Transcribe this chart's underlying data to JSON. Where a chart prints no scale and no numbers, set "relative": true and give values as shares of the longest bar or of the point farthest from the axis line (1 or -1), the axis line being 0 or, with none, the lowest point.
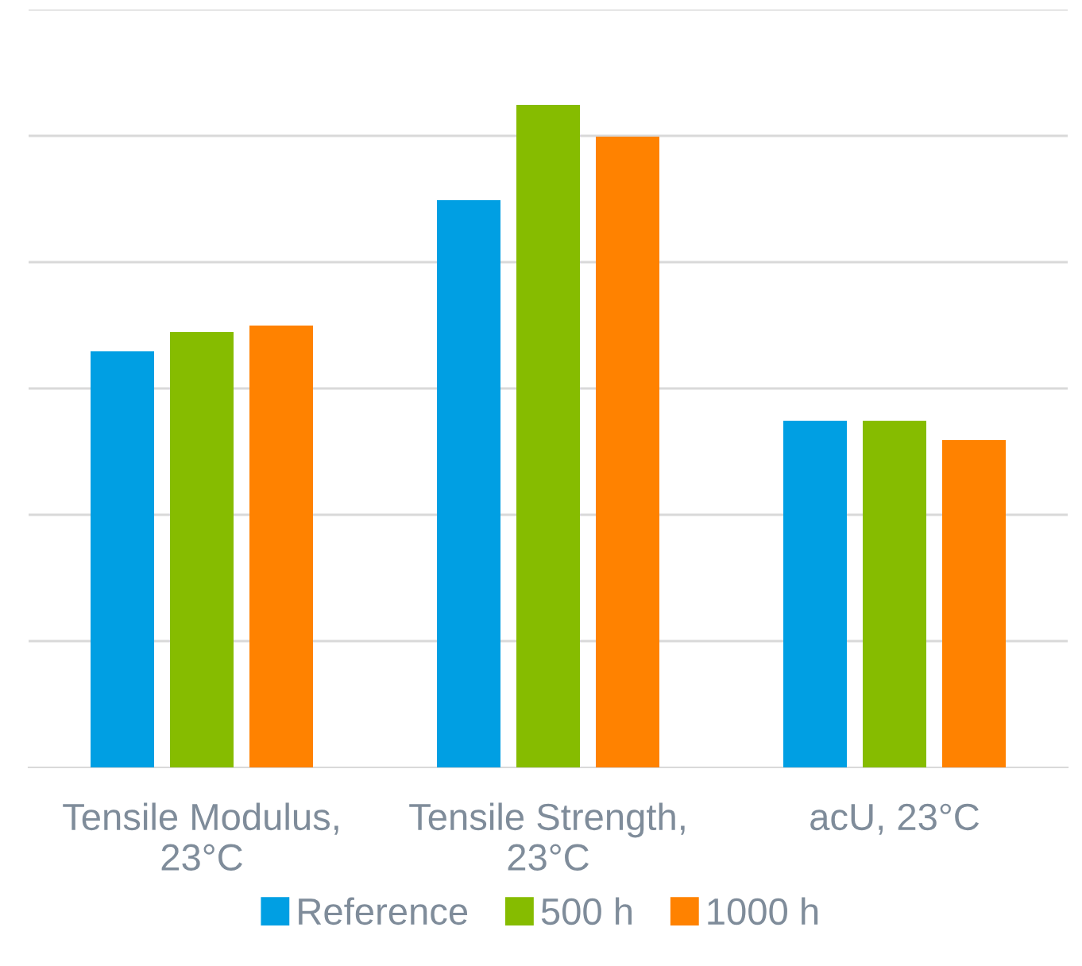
{
  "chart_data": {
    "type": "bar",
    "relative": true,
    "grid": "y",
    "legend": "bottom",
    "categories": [
      "Tensile Modulus,\n23°C",
      "Tensile Strength,\n23°C",
      "acU, 23°C"
    ],
    "series": [
      {
        "name": "Reference",
        "color": "#009fe3",
        "values": [
          0.628,
          0.856,
          0.523
        ]
      },
      {
        "name": "500 h",
        "color": "#86bc00",
        "values": [
          0.657,
          1,
          0.523
        ]
      },
      {
        "name": "1000 h",
        "color": "#ff8200",
        "values": [
          0.667,
          0.952,
          0.494
        ]
      }
    ]
  }
}
